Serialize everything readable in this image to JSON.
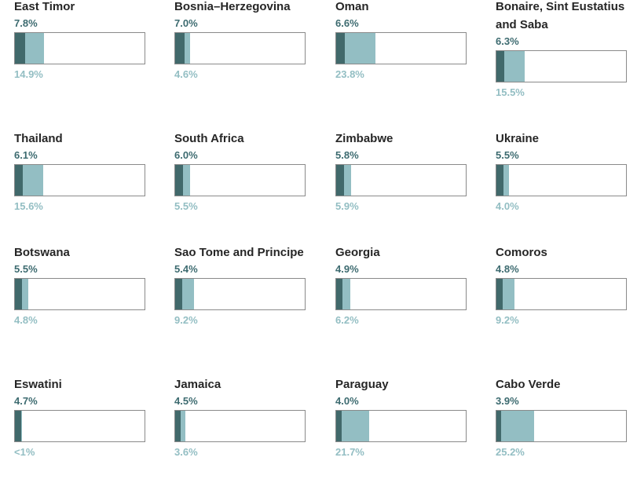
{
  "chart_data": {
    "type": "bar",
    "series": [
      {
        "name": "",
        "color": "#41696b"
      },
      {
        "name": "",
        "color": "#93bec3"
      }
    ],
    "items": [
      {
        "name": "East Timor",
        "a": 7.8,
        "a_label": "7.8%",
        "b": 14.9,
        "b_label": "14.9%"
      },
      {
        "name": "Bosnia–Herzegovina",
        "a": 7.0,
        "a_label": "7.0%",
        "b": 4.6,
        "b_label": "4.6%"
      },
      {
        "name": "Oman",
        "a": 6.6,
        "a_label": "6.6%",
        "b": 23.8,
        "b_label": "23.8%"
      },
      {
        "name": "Bonaire, Sint Eustatius and Saba",
        "a": 6.3,
        "a_label": "6.3%",
        "b": 15.5,
        "b_label": "15.5%"
      },
      {
        "name": "Thailand",
        "a": 6.1,
        "a_label": "6.1%",
        "b": 15.6,
        "b_label": "15.6%"
      },
      {
        "name": "South Africa",
        "a": 6.0,
        "a_label": "6.0%",
        "b": 5.5,
        "b_label": "5.5%"
      },
      {
        "name": "Zimbabwe",
        "a": 5.8,
        "a_label": "5.8%",
        "b": 5.9,
        "b_label": "5.9%"
      },
      {
        "name": "Ukraine",
        "a": 5.5,
        "a_label": "5.5%",
        "b": 4.0,
        "b_label": "4.0%"
      },
      {
        "name": "Botswana",
        "a": 5.5,
        "a_label": "5.5%",
        "b": 4.8,
        "b_label": "4.8%"
      },
      {
        "name": "Sao Tome and Principe",
        "a": 5.4,
        "a_label": "5.4%",
        "b": 9.2,
        "b_label": "9.2%"
      },
      {
        "name": "Georgia",
        "a": 4.9,
        "a_label": "4.9%",
        "b": 6.2,
        "b_label": "6.2%"
      },
      {
        "name": "Comoros",
        "a": 4.8,
        "a_label": "4.8%",
        "b": 9.2,
        "b_label": "9.2%"
      },
      {
        "name": "Eswatini",
        "a": 4.7,
        "a_label": "4.7%",
        "b": 0.5,
        "b_label": "<1%"
      },
      {
        "name": "Jamaica",
        "a": 4.5,
        "a_label": "4.5%",
        "b": 3.6,
        "b_label": "3.6%"
      },
      {
        "name": "Paraguay",
        "a": 4.0,
        "a_label": "4.0%",
        "b": 21.7,
        "b_label": "21.7%"
      },
      {
        "name": "Cabo Verde",
        "a": 3.9,
        "a_label": "3.9%",
        "b": 25.2,
        "b_label": "25.2%"
      }
    ],
    "xlim": [
      0,
      100
    ],
    "legend": "none",
    "grid": false
  }
}
